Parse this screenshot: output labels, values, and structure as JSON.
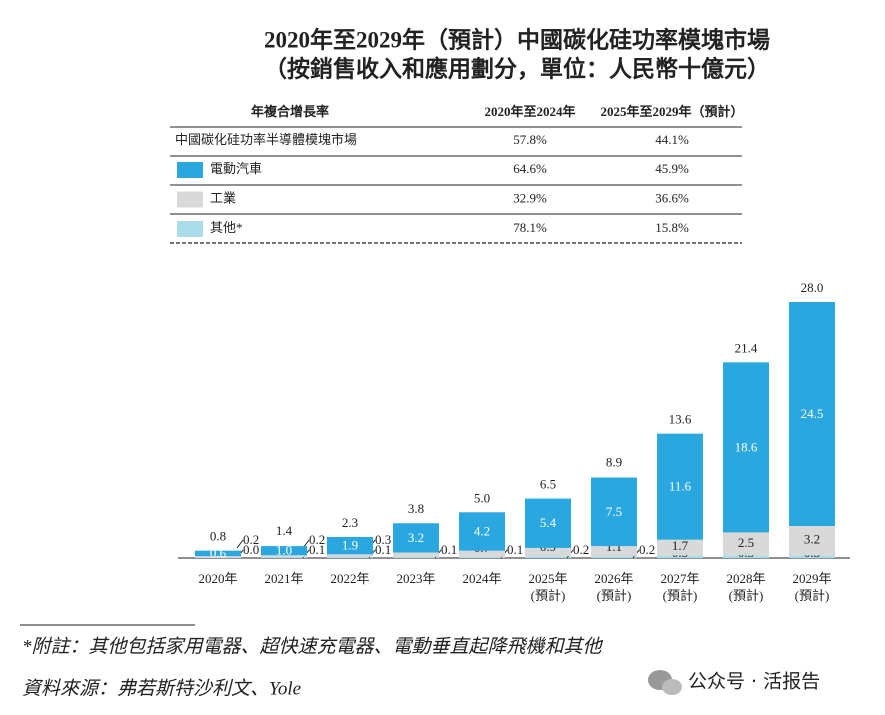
{
  "chart_data": {
    "type": "stacked-bar",
    "title": [
      "2020年至2029年（預計）中國碳化硅功率模塊市場",
      "（按銷售收入和應用劃分，單位：人民幣十億元）"
    ],
    "table_header": [
      "年複合增長率",
      "2020年至2024年",
      "2025年至2029年（預計）"
    ],
    "market": {
      "name": "中國碳化硅功率半導體模塊市場",
      "cagr": [
        "57.8%",
        "44.1%"
      ]
    },
    "categories": [
      [
        "2020年"
      ],
      [
        "2021年"
      ],
      [
        "2022年"
      ],
      [
        "2023年"
      ],
      [
        "2024年"
      ],
      [
        "2025年",
        "(預計)"
      ],
      [
        "2026年",
        "(預計)"
      ],
      [
        "2027年",
        "(預計)"
      ],
      [
        "2028年",
        "(預計)"
      ],
      [
        "2029年",
        "(預計)"
      ]
    ],
    "series": [
      {
        "name": "電動汽車",
        "color": "#2aa7df",
        "cagr": [
          "64.6%",
          "45.9%"
        ],
        "values": [
          0.6,
          1.0,
          1.9,
          3.2,
          4.2,
          5.4,
          7.5,
          11.6,
          18.6,
          24.5
        ],
        "value_labels": [
          "0.6",
          "1.0",
          "1.9",
          "3.2",
          "4.2",
          "5.4",
          "7.5",
          "11.6",
          "18.6",
          "24.5"
        ]
      },
      {
        "name": "工業",
        "color": "#d9d9d9",
        "cagr": [
          "32.9%",
          "36.6%"
        ],
        "values": [
          0.2,
          0.2,
          0.3,
          0.5,
          0.7,
          0.9,
          1.1,
          1.7,
          2.5,
          3.2
        ],
        "value_labels": [
          "0.2",
          "0.2",
          "0.3",
          "0.5",
          "0.7",
          "0.9",
          "1.1",
          "1.7",
          "2.5",
          "3.2"
        ]
      },
      {
        "name": "其他*",
        "color": "#a8dde9",
        "cagr": [
          "78.1%",
          "15.8%"
        ],
        "values": [
          0.0,
          0.1,
          0.1,
          0.1,
          0.1,
          0.2,
          0.2,
          0.3,
          0.3,
          0.3
        ],
        "value_labels": [
          "0.0",
          "0.1",
          "0.1",
          "0.1",
          "0.1",
          "0.2",
          "0.2",
          "0.3",
          "0.3",
          "0.3"
        ]
      }
    ],
    "totals": {
      "values": [
        0.8,
        1.4,
        2.3,
        3.8,
        5.0,
        6.5,
        8.9,
        13.6,
        21.4,
        28.0
      ],
      "value_labels": [
        "0.8",
        "1.4",
        "2.3",
        "3.8",
        "5.0",
        "6.5",
        "8.9",
        "13.6",
        "21.4",
        "28.0"
      ]
    },
    "notes": [
      "*附註：其他包括家用電器、超快速充電器、電動垂直起降飛機和其他",
      "資料來源：弗若斯特沙利文、Yole"
    ],
    "watermark": "公众号 · 活报告"
  }
}
